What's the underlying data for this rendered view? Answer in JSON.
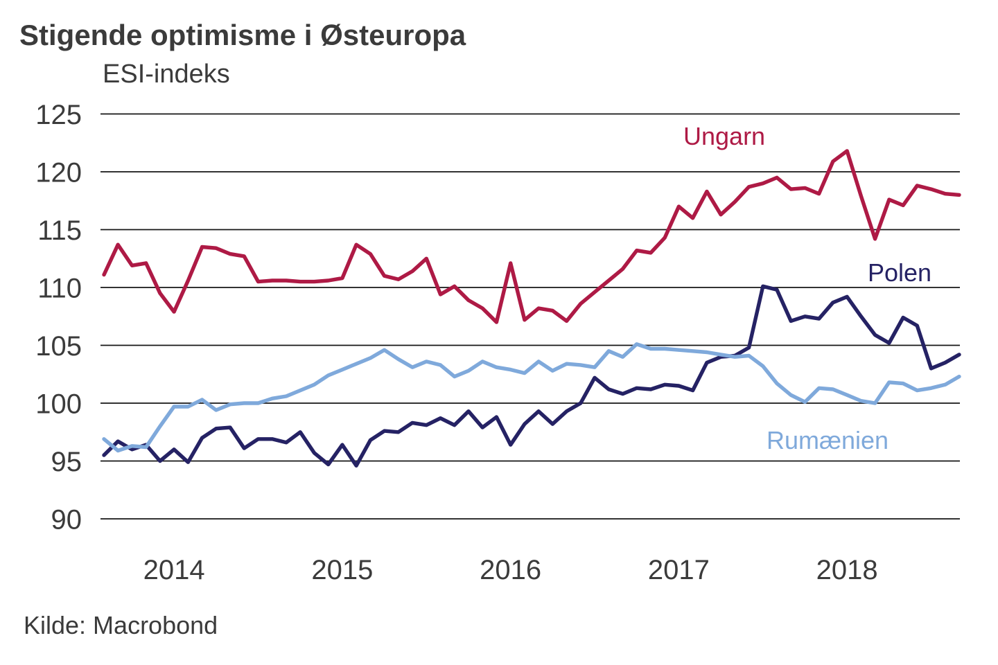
{
  "title": "Stigende optimisme i Østeuropa",
  "subtitle": "ESI-indeks",
  "source": "Kilde: Macrobond",
  "colors": {
    "ungarn": "#AE1A45",
    "polen": "#252264",
    "rumaenien": "#7FA9DB",
    "text": "#3B3B3B",
    "gridline": "#141414",
    "background": "#FFFFFF"
  },
  "chart_data": {
    "type": "line",
    "title": "Stigende optimisme i Østeuropa",
    "ylabel": "ESI-indeks",
    "xlabel": "",
    "grid": "horizontal",
    "legend_position": "inline-labels",
    "ylim": [
      90,
      125
    ],
    "yticks": [
      125,
      120,
      115,
      110,
      105,
      100,
      95,
      90
    ],
    "xticks": [
      "2014",
      "2015",
      "2016",
      "2017",
      "2018"
    ],
    "frequency": "monthly",
    "x_start": {
      "year": 2013,
      "month": 8
    },
    "x_end": {
      "year": 2018,
      "month": 9
    },
    "series": [
      {
        "name": "Ungarn",
        "color": "#AE1A45",
        "values": [
          111.1,
          113.7,
          111.9,
          112.1,
          109.5,
          107.9,
          110.6,
          113.5,
          113.4,
          112.9,
          112.7,
          110.5,
          110.6,
          110.6,
          110.5,
          110.5,
          110.6,
          110.8,
          113.7,
          112.9,
          111.0,
          110.7,
          111.4,
          112.5,
          109.4,
          110.1,
          108.9,
          108.2,
          107.0,
          112.1,
          107.2,
          108.2,
          108.0,
          107.1,
          108.6,
          109.6,
          110.6,
          111.6,
          113.2,
          113.0,
          114.3,
          117.0,
          116.0,
          118.3,
          116.3,
          117.4,
          118.7,
          119.0,
          119.5,
          118.5,
          118.6,
          118.1,
          120.9,
          121.8,
          117.9,
          114.2,
          117.6,
          117.1,
          118.8,
          118.5,
          118.1,
          118.0
        ]
      },
      {
        "name": "Polen",
        "color": "#252264",
        "values": [
          95.5,
          96.7,
          96.0,
          96.4,
          95.0,
          96.0,
          94.9,
          97.0,
          97.8,
          97.9,
          96.1,
          96.9,
          96.9,
          96.6,
          97.5,
          95.7,
          94.7,
          96.4,
          94.6,
          96.8,
          97.6,
          97.5,
          98.3,
          98.1,
          98.7,
          98.1,
          99.3,
          97.9,
          98.8,
          96.4,
          98.2,
          99.3,
          98.2,
          99.3,
          100.0,
          102.2,
          101.2,
          100.8,
          101.3,
          101.2,
          101.6,
          101.5,
          101.1,
          103.5,
          104.0,
          104.1,
          104.8,
          110.1,
          109.8,
          107.1,
          107.5,
          107.3,
          108.7,
          109.2,
          107.5,
          105.9,
          105.2,
          107.4,
          106.7,
          103.0,
          103.5,
          104.2
        ]
      },
      {
        "name": "Rumænien",
        "color": "#7FA9DB",
        "values": [
          96.9,
          95.9,
          96.3,
          96.2,
          98.0,
          99.7,
          99.7,
          100.3,
          99.4,
          99.9,
          100.0,
          100.0,
          100.4,
          100.6,
          101.1,
          101.6,
          102.4,
          102.9,
          103.4,
          103.9,
          104.6,
          103.8,
          103.1,
          103.6,
          103.3,
          102.3,
          102.8,
          103.6,
          103.1,
          102.9,
          102.6,
          103.6,
          102.8,
          103.4,
          103.3,
          103.1,
          104.5,
          104.0,
          105.1,
          104.7,
          104.7,
          104.6,
          104.5,
          104.4,
          104.2,
          104.0,
          104.1,
          103.2,
          101.7,
          100.7,
          100.1,
          101.3,
          101.2,
          100.7,
          100.2,
          100.0,
          101.8,
          101.7,
          101.1,
          101.3,
          101.6,
          102.3
        ]
      }
    ]
  }
}
